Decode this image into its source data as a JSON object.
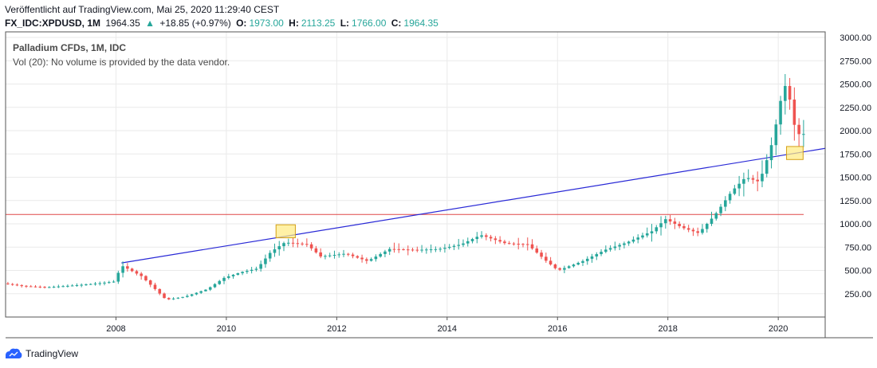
{
  "header": {
    "published": "Veröffentlicht auf TradingView.com, Mai 25, 2020 11:29:40 CEST",
    "symbol": "FX_IDC:XPDUSD, 1M",
    "last": "1964.35",
    "arrow": "▲",
    "change": "+18.85 (+0.97%)",
    "o_label": "O:",
    "o_value": "1973.00",
    "h_label": "H:",
    "h_value": "2113.25",
    "l_label": "L:",
    "l_value": "1766.00",
    "c_label": "C:",
    "c_value": "1964.35"
  },
  "legend": {
    "title": "Palladium CFDs, 1M, IDC",
    "volume": "Vol (20): No volume is provided by the data vendor."
  },
  "footer": {
    "brand": "TradingView",
    "logo_icon": "tradingview-cloud-icon"
  },
  "colors": {
    "up": "#26a69a",
    "down": "#ef5350",
    "trendline": "#2929d6",
    "hline": "#e04848",
    "highlight_fill": "#ffeb80",
    "highlight_stroke": "#d4a017"
  },
  "chart_data": {
    "type": "candlestick",
    "title": "Palladium CFDs, 1M, IDC",
    "xlabel": "",
    "ylabel": "",
    "ylim": [
      0,
      3060
    ],
    "xlim": [
      2006.0,
      2020.85
    ],
    "grid": true,
    "y_ticks": [
      "250.00",
      "500.00",
      "750.00",
      "1000.00",
      "1250.00",
      "1500.00",
      "1750.00",
      "2000.00",
      "2250.00",
      "2500.00",
      "2750.00",
      "3000.00"
    ],
    "y_tick_values": [
      250,
      500,
      750,
      1000,
      1250,
      1500,
      1750,
      2000,
      2250,
      2500,
      2750,
      3000
    ],
    "x_ticks": [
      "2008",
      "2010",
      "2012",
      "2014",
      "2016",
      "2018",
      "2020"
    ],
    "x_tick_values": [
      2008,
      2010,
      2012,
      2014,
      2016,
      2018,
      2020
    ],
    "anchor_points": [
      [
        2006.0,
        360
      ],
      [
        2006.4,
        330
      ],
      [
        2006.8,
        320
      ],
      [
        2007.3,
        340
      ],
      [
        2007.7,
        360
      ],
      [
        2008.0,
        380
      ],
      [
        2008.15,
        550
      ],
      [
        2008.5,
        440
      ],
      [
        2008.75,
        300
      ],
      [
        2008.95,
        185
      ],
      [
        2009.3,
        220
      ],
      [
        2009.7,
        300
      ],
      [
        2010.0,
        420
      ],
      [
        2010.3,
        480
      ],
      [
        2010.6,
        520
      ],
      [
        2010.85,
        700
      ],
      [
        2011.1,
        800
      ],
      [
        2011.5,
        780
      ],
      [
        2011.75,
        650
      ],
      [
        2012.2,
        680
      ],
      [
        2012.6,
        600
      ],
      [
        2013.0,
        730
      ],
      [
        2013.5,
        720
      ],
      [
        2013.9,
        730
      ],
      [
        2014.3,
        780
      ],
      [
        2014.65,
        880
      ],
      [
        2015.1,
        790
      ],
      [
        2015.5,
        780
      ],
      [
        2015.8,
        620
      ],
      [
        2016.05,
        500
      ],
      [
        2016.5,
        600
      ],
      [
        2016.9,
        720
      ],
      [
        2017.3,
        800
      ],
      [
        2017.75,
        920
      ],
      [
        2018.0,
        1050
      ],
      [
        2018.3,
        960
      ],
      [
        2018.6,
        900
      ],
      [
        2018.9,
        1100
      ],
      [
        2019.2,
        1350
      ],
      [
        2019.45,
        1500
      ],
      [
        2019.7,
        1450
      ],
      [
        2019.9,
        1800
      ],
      [
        2020.05,
        2200
      ],
      [
        2020.12,
        2450
      ],
      [
        2020.2,
        2500
      ],
      [
        2020.29,
        2200
      ],
      [
        2020.37,
        1946
      ],
      [
        2020.42,
        1964
      ]
    ],
    "trendline": {
      "start": [
        2008.1,
        580
      ],
      "end": [
        2020.85,
        1810
      ]
    },
    "horizontal_line": {
      "y": 1100
    },
    "highlight_boxes": [
      {
        "x0": 2010.9,
        "x1": 2011.25,
        "y0": 850,
        "y1": 990
      },
      {
        "x0": 2020.15,
        "x1": 2020.45,
        "y0": 1690,
        "y1": 1830
      }
    ]
  }
}
